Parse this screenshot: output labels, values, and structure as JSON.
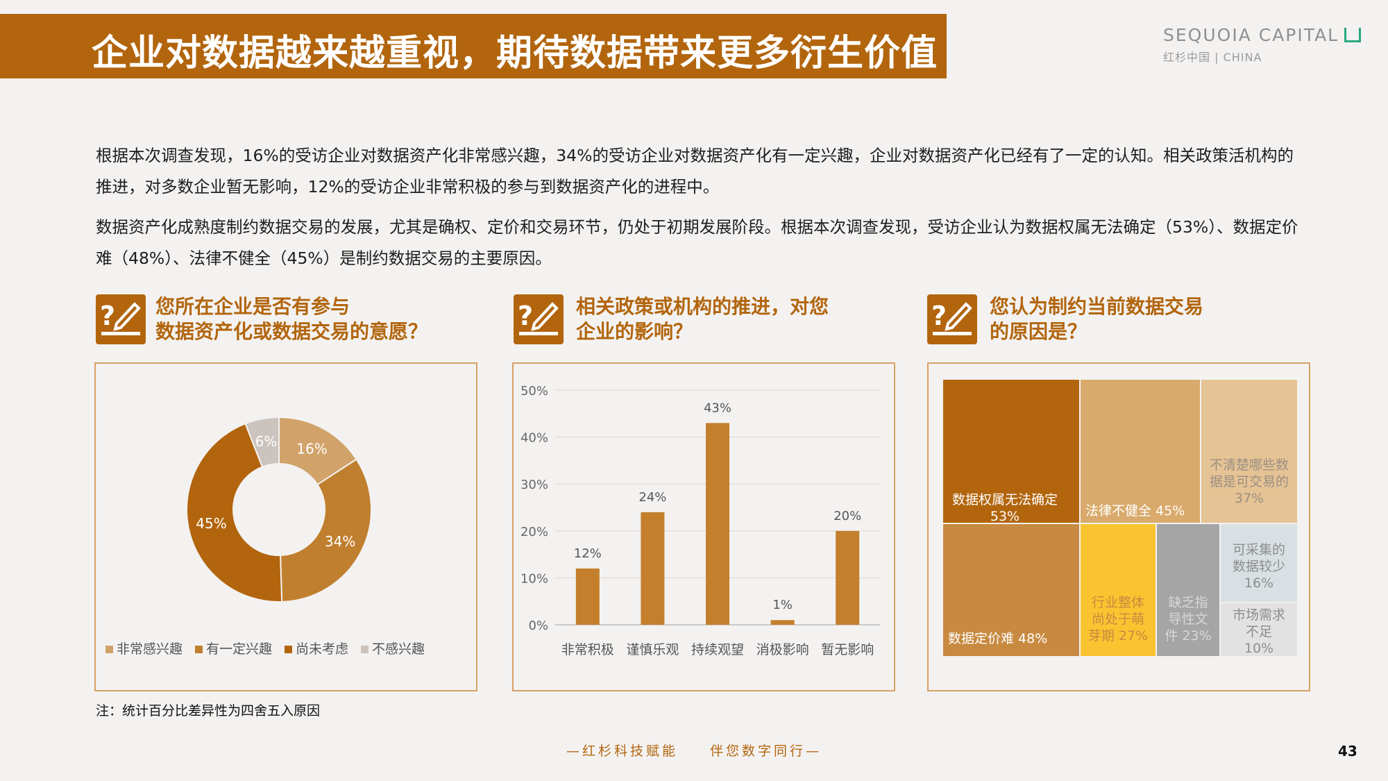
{
  "header": {
    "title": "企业对数据越来越重视，期待数据带来更多衍生价值",
    "logo_main": "SEQUOIA CAPITAL",
    "logo_sub": "红杉中国 | CHINA"
  },
  "paragraphs": [
    "根据本次调查发现，16%的受访企业对数据资产化非常感兴趣，34%的受访企业对数据资产化有一定兴趣，企业对数据资产化已经有了一定的认知。相关政策活机构的推进，对多数企业暂无影响，12%的受访企业非常积极的参与到数据资产化的进程中。",
    "数据资产化成熟度制约数据交易的发展，尤其是确权、定价和交易环节，仍处于初期发展阶段。根据本次调查发现，受访企业认为数据权属无法确定（53%）、数据定价难（48%）、法律不健全（45%）是制约数据交易的主要原因。"
  ],
  "questions": [
    {
      "title": "您所在企业是否有参与数据资产化或数据交易的意愿？",
      "line1": "您所在企业是否有参与",
      "line2": "数据资产化或数据交易的意愿？"
    },
    {
      "title": "相关政策或机构的推进，对您企业的影响？",
      "line1": "相关政策或机构的推进，对您",
      "line2": "企业的影响？"
    },
    {
      "title": "您认为制约当前数据交易的原因是？",
      "line1": "您认为制约当前数据交易",
      "line2": "的原因是？"
    }
  ],
  "colors": {
    "brand": "#b2650d",
    "donut": [
      "#d1a36a",
      "#c07f2e",
      "#b2650d",
      "#cbc3bd"
    ],
    "bar": "#c47f2c",
    "treemap": [
      "#b2650d",
      "#c88a40",
      "#d9aa6b",
      "#e6c394",
      "#fac330",
      "#a5a5a5",
      "#d8e0e3",
      "#e2e2e2"
    ]
  },
  "chart_data": [
    {
      "type": "pie",
      "variant": "donut",
      "labels": [
        "非常感兴趣",
        "有一定兴趣",
        "尚未考虑",
        "不感兴趣"
      ],
      "values": [
        16,
        34,
        45,
        6
      ],
      "value_labels": [
        "16%",
        "34%",
        "45%",
        "6%"
      ],
      "legend_position": "bottom"
    },
    {
      "type": "bar",
      "categories": [
        "非常积极",
        "谨慎乐观",
        "持续观望",
        "消极影响",
        "暂无影响"
      ],
      "values": [
        12,
        24,
        43,
        1,
        20
      ],
      "value_labels": [
        "12%",
        "24%",
        "43%",
        "1%",
        "20%"
      ],
      "y_ticks": [
        "0%",
        "10%",
        "20%",
        "30%",
        "40%",
        "50%"
      ],
      "ylim": [
        0,
        50
      ],
      "grid": true
    },
    {
      "type": "treemap",
      "items": [
        {
          "label": "数据权属无法确定",
          "value": 53,
          "value_label": "53%"
        },
        {
          "label": "数据定价难",
          "value": 48,
          "value_label": "48%"
        },
        {
          "label": "法律不健全",
          "value": 45,
          "value_label": "45%"
        },
        {
          "label": "不清楚哪些数据是可交易的",
          "value": 37,
          "value_label": "37%"
        },
        {
          "label": "行业整体尚处于萌芽期",
          "value": 27,
          "value_label": "27%"
        },
        {
          "label": "缺乏指导性文件",
          "value": 23,
          "value_label": "23%"
        },
        {
          "label": "可采集的数据较少",
          "value": 16,
          "value_label": "16%"
        },
        {
          "label": "市场需求不足",
          "value": 10,
          "value_label": "10%"
        }
      ]
    }
  ],
  "treemap_display": {
    "t1": [
      "数据权属无法确定",
      "53%"
    ],
    "t2": [
      "数据定价难 48%"
    ],
    "t3": [
      "法律不健全 45%"
    ],
    "t4": [
      "不清楚哪些数",
      "据是可交易的",
      "37%"
    ],
    "t5": [
      "行业整体",
      "尚处于萌",
      "芽期 27%"
    ],
    "t6": [
      "缺乏指",
      "导性文",
      "件 23%"
    ],
    "t7": [
      "可采集的",
      "数据较少",
      "16%"
    ],
    "t8": [
      "市场需求",
      "不足",
      "10%"
    ]
  },
  "note": "注：统计百分比差异性为四舍五入原因",
  "footer": "—红杉科技赋能　　伴您数字同行—",
  "page_number": "43"
}
